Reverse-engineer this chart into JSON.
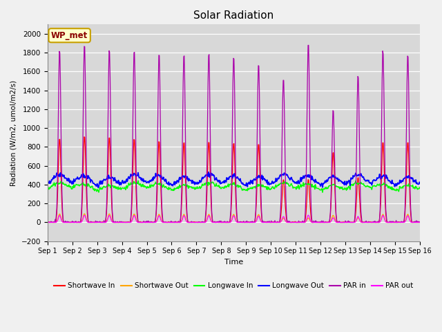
{
  "title": "Solar Radiation",
  "xlabel": "Time",
  "ylabel": "Radiation (W/m2, umol/m2/s)",
  "ylim": [
    -200,
    2100
  ],
  "yticks": [
    -200,
    0,
    200,
    400,
    600,
    800,
    1000,
    1200,
    1400,
    1600,
    1800,
    2000
  ],
  "label_text": "WP_met",
  "fig_size": [
    6.4,
    4.8
  ],
  "dpi": 100,
  "bg_color": "#d8d8d8",
  "plot_bg_color": "#d8d8d8",
  "grid_color": "#ffffff",
  "n_days": 15,
  "sw_in_peaks": [
    900,
    920,
    910,
    890,
    870,
    860,
    860,
    850,
    840,
    460,
    460,
    750,
    480,
    860,
    860
  ],
  "par_in_peaks": [
    1850,
    1900,
    1860,
    1840,
    1800,
    1800,
    1800,
    1770,
    1700,
    1550,
    1910,
    1200,
    1570,
    1840,
    1800
  ],
  "legend": [
    {
      "label": "Shortwave In",
      "color": "red"
    },
    {
      "label": "Shortwave Out",
      "color": "orange"
    },
    {
      "label": "Longwave In",
      "color": "lime"
    },
    {
      "label": "Longwave Out",
      "color": "blue"
    },
    {
      "label": "PAR in",
      "color": "#aa00aa"
    },
    {
      "label": "PAR out",
      "color": "magenta"
    }
  ]
}
